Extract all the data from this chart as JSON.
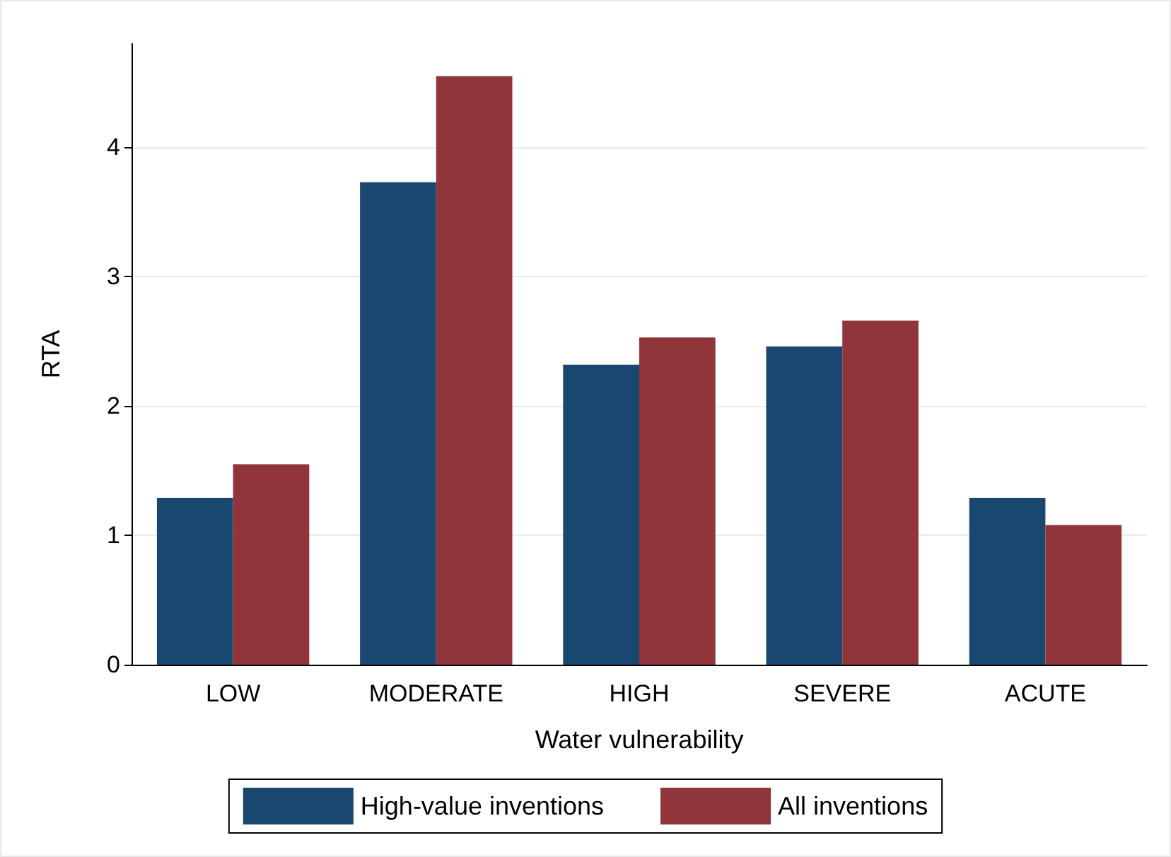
{
  "chart_data": {
    "type": "bar",
    "xlabel": "Water vulnerability",
    "ylabel": "RTA",
    "categories": [
      "LOW",
      "MODERATE",
      "HIGH",
      "SEVERE",
      "ACUTE"
    ],
    "series": [
      {
        "name": "High-value inventions",
        "color": "#1a476f",
        "values": [
          1.29,
          3.73,
          2.32,
          2.46,
          1.29
        ]
      },
      {
        "name": "All inventions",
        "color": "#90353b",
        "values": [
          1.55,
          4.55,
          2.53,
          2.66,
          1.08
        ]
      }
    ],
    "ylim": [
      0,
      4.8
    ],
    "yticks": [
      0,
      1,
      2,
      3,
      4
    ],
    "grid": "y",
    "legend": "bottom"
  }
}
